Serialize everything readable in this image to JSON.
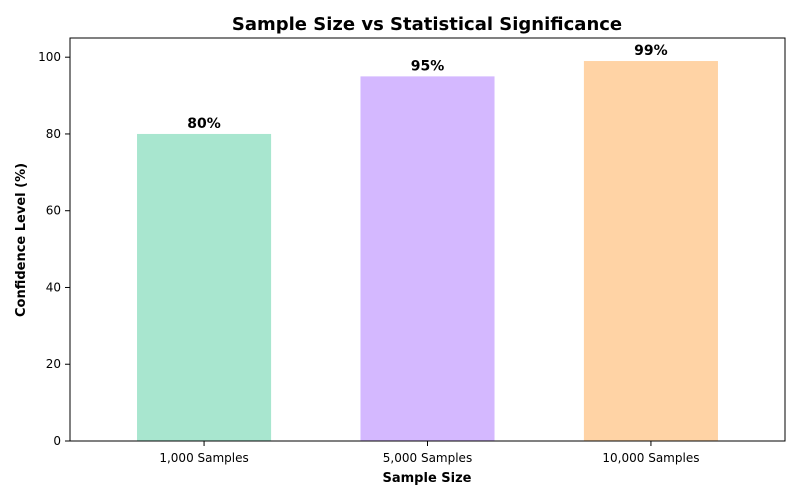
{
  "chart_data": {
    "type": "bar",
    "title": "Sample Size vs Statistical Significance",
    "xlabel": "Sample Size",
    "ylabel": "Confidence Level (%)",
    "categories": [
      "1,000 Samples",
      "5,000 Samples",
      "10,000 Samples"
    ],
    "values": [
      80,
      95,
      99
    ],
    "data_labels": [
      "80%",
      "95%",
      "99%"
    ],
    "colors": [
      "#a8e6cf",
      "#d4b8ff",
      "#ffd3a5"
    ],
    "ylim": [
      0,
      105
    ],
    "yticks": [
      0,
      20,
      40,
      60,
      80,
      100
    ],
    "grid": false,
    "legend": "none"
  }
}
